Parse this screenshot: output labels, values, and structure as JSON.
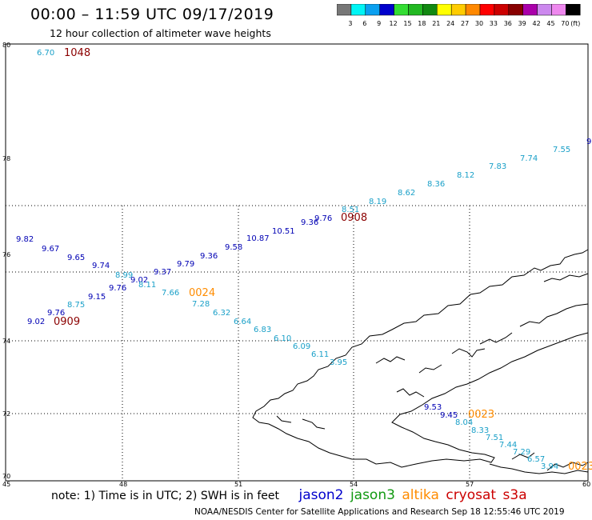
{
  "header": {
    "title": "00:00 – 11:59 UTC 09/17/2019",
    "subtitle": "12 hour collection of altimeter wave heights"
  },
  "colorbar": {
    "colors": [
      "#777777",
      "#00f5f5",
      "#0aa0f0",
      "#0000cc",
      "#33dd33",
      "#22b822",
      "#118811",
      "#ffff00",
      "#ffcc00",
      "#ff8800",
      "#ff0000",
      "#cc0000",
      "#880000",
      "#aa00aa",
      "#cc88ee",
      "#ee88ee",
      "#000000"
    ],
    "labels": [
      "3",
      "6",
      "9",
      "12",
      "15",
      "18",
      "21",
      "24",
      "27",
      "30",
      "33",
      "36",
      "39",
      "42",
      "45",
      "70",
      "(ft)"
    ]
  },
  "axes": {
    "y_labels": [
      "80",
      "78",
      "76",
      "74",
      "72",
      "70"
    ],
    "x_labels": [
      "45",
      "48",
      "51",
      "54",
      "57",
      "60"
    ]
  },
  "observations": [
    {
      "text": "6.70",
      "color": "#1aa0c8"
    },
    {
      "text": "9.82",
      "color": "#0000b4"
    },
    {
      "text": "9.67",
      "color": "#0000b4"
    },
    {
      "text": "9.65",
      "color": "#0000b4"
    },
    {
      "text": "9.74",
      "color": "#0000b4"
    },
    {
      "text": "8.99",
      "color": "#1aa0c8"
    },
    {
      "text": "9.02",
      "color": "#0000b4"
    },
    {
      "text": "8.11",
      "color": "#1aa0c8"
    },
    {
      "text": "9.76",
      "color": "#0000b4"
    },
    {
      "text": "9.15",
      "color": "#0000b4"
    },
    {
      "text": "8.75",
      "color": "#1aa0c8"
    },
    {
      "text": "9.76",
      "color": "#0000b4"
    },
    {
      "text": "9.02",
      "color": "#0000b4"
    },
    {
      "text": "9.37",
      "color": "#0000b4"
    },
    {
      "text": "9.79",
      "color": "#0000b4"
    },
    {
      "text": "9.36",
      "color": "#0000b4"
    },
    {
      "text": "9.58",
      "color": "#0000b4"
    },
    {
      "text": "10.87",
      "color": "#0000b4"
    },
    {
      "text": "10.51",
      "color": "#0000b4"
    },
    {
      "text": "9.36",
      "color": "#0000b4"
    },
    {
      "text": "9.76",
      "color": "#0000b4"
    },
    {
      "text": "8.51",
      "color": "#1aa0c8"
    },
    {
      "text": "8.19",
      "color": "#1aa0c8"
    },
    {
      "text": "8.62",
      "color": "#1aa0c8"
    },
    {
      "text": "8.36",
      "color": "#1aa0c8"
    },
    {
      "text": "8.12",
      "color": "#1aa0c8"
    },
    {
      "text": "7.83",
      "color": "#1aa0c8"
    },
    {
      "text": "7.74",
      "color": "#1aa0c8"
    },
    {
      "text": "7.55",
      "color": "#1aa0c8"
    },
    {
      "text": "9",
      "color": "#0000b4"
    },
    {
      "text": "7.66",
      "color": "#1aa0c8"
    },
    {
      "text": "7.28",
      "color": "#1aa0c8"
    },
    {
      "text": "6.32",
      "color": "#1aa0c8"
    },
    {
      "text": "6.64",
      "color": "#1aa0c8"
    },
    {
      "text": "6.83",
      "color": "#1aa0c8"
    },
    {
      "text": "6.10",
      "color": "#1aa0c8"
    },
    {
      "text": "6.09",
      "color": "#1aa0c8"
    },
    {
      "text": "6.11",
      "color": "#1aa0c8"
    },
    {
      "text": "3.95",
      "color": "#1aa0c8"
    },
    {
      "text": "9.53",
      "color": "#0000b4"
    },
    {
      "text": "9.45",
      "color": "#0000b4"
    },
    {
      "text": "8.04",
      "color": "#1aa0c8"
    },
    {
      "text": "8.33",
      "color": "#1aa0c8"
    },
    {
      "text": "7.51",
      "color": "#1aa0c8"
    },
    {
      "text": "7.44",
      "color": "#1aa0c8"
    },
    {
      "text": "7.29",
      "color": "#1aa0c8"
    },
    {
      "text": "6.57",
      "color": "#1aa0c8"
    },
    {
      "text": "3.94",
      "color": "#1aa0c8"
    }
  ],
  "time_labels": [
    {
      "text": "1048",
      "color": "#8b0000"
    },
    {
      "text": "0909",
      "color": "#8b0000"
    },
    {
      "text": "0908",
      "color": "#8b0000"
    },
    {
      "text": "0024",
      "color": "#ff8c00"
    },
    {
      "text": "0023",
      "color": "#ff8c00"
    },
    {
      "text": "0023",
      "color": "#ff8c00"
    }
  ],
  "legend": {
    "note": "note: 1) Time is in UTC; 2) SWH is in feet",
    "satellites": [
      {
        "name": "jason2",
        "color": "#0000cc"
      },
      {
        "name": "jason3",
        "color": "#119911"
      },
      {
        "name": "altika",
        "color": "#ff8c00"
      },
      {
        "name": "cryosat",
        "color": "#cc0000"
      },
      {
        "name": "s3a",
        "color": "#cc0000"
      }
    ]
  },
  "credit": "NOAA/NESDIS Center for Satellite Applications and Research   Sep 18 12:55:46 UTC 2019"
}
